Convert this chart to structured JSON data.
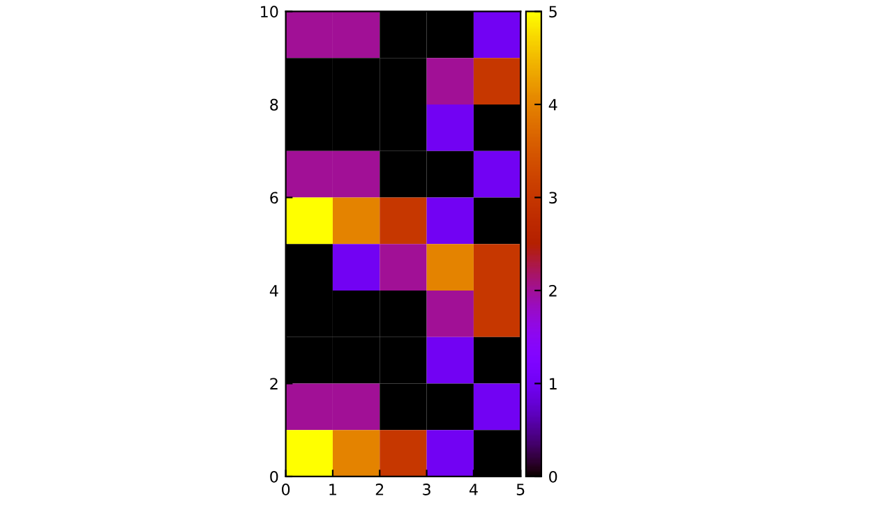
{
  "chart_data": {
    "type": "heatmap",
    "xlim": [
      0,
      5
    ],
    "xticks": [
      0,
      1,
      2,
      3,
      4,
      5
    ],
    "ylim": [
      0,
      10
    ],
    "yticks": [
      0,
      2,
      4,
      6,
      8,
      10
    ],
    "cells": [
      [
        2,
        2,
        0,
        0,
        1
      ],
      [
        0,
        0,
        0,
        2,
        3
      ],
      [
        0,
        0,
        0,
        1,
        0
      ],
      [
        2,
        2,
        0,
        0,
        1
      ],
      [
        5,
        4,
        3,
        1,
        0
      ],
      [
        0,
        1,
        2,
        4,
        3
      ],
      [
        0,
        0,
        0,
        2,
        3
      ],
      [
        0,
        0,
        0,
        1,
        0
      ],
      [
        2,
        2,
        0,
        0,
        1
      ],
      [
        5,
        4,
        3,
        1,
        0
      ]
    ],
    "clim": [
      0,
      5
    ],
    "cticks": [
      0,
      1,
      2,
      3,
      4,
      5
    ],
    "grid": false
  }
}
